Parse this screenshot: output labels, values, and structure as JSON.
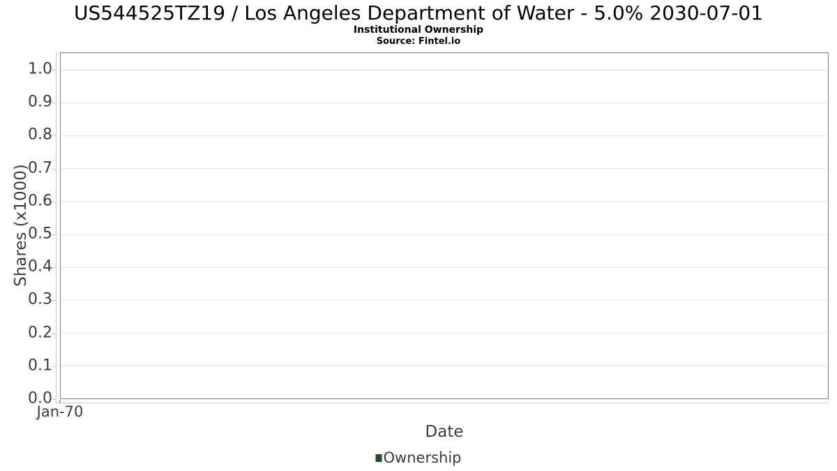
{
  "header": {
    "title": "US544525TZ19 / Los Angeles Department of Water - 5.0% 2030-07-01",
    "subtitle": "Institutional Ownership",
    "source": "Source: Fintel.io"
  },
  "axes": {
    "x_label": "Date",
    "y_label": "Shares (x1000)"
  },
  "legend": {
    "items": [
      {
        "label": "Ownership",
        "color": "#1e4b2a"
      }
    ]
  },
  "chart_data": {
    "type": "line",
    "title": "US544525TZ19 / Los Angeles Department of Water - 5.0% 2030-07-01",
    "subtitle": "Institutional Ownership",
    "source": "Source: Fintel.io",
    "xlabel": "Date",
    "ylabel": "Shares (x1000)",
    "x": [],
    "series": [
      {
        "name": "Ownership",
        "color": "#1e4b2a",
        "values": []
      }
    ],
    "xticks": [
      "Jan-70"
    ],
    "yticks": [
      0.0,
      0.1,
      0.2,
      0.3,
      0.4,
      0.5,
      0.6,
      0.7,
      0.8,
      0.9,
      1.0
    ],
    "ytick_labels": [
      "0.0",
      "0.1",
      "0.2",
      "0.3",
      "0.4",
      "0.5",
      "0.6",
      "0.7",
      "0.8",
      "0.9",
      "1.0"
    ],
    "ylim": [
      0.0,
      1.053
    ],
    "grid": true,
    "legend_position": "bottom"
  },
  "colors": {
    "plot_border": "#7f7f7f",
    "axis_line": "#c9c9c9",
    "gridline": "#e7e7e7",
    "label_text": "#3c3c3c",
    "title_text": "#000000",
    "series_ownership": "#1e4b2a"
  }
}
